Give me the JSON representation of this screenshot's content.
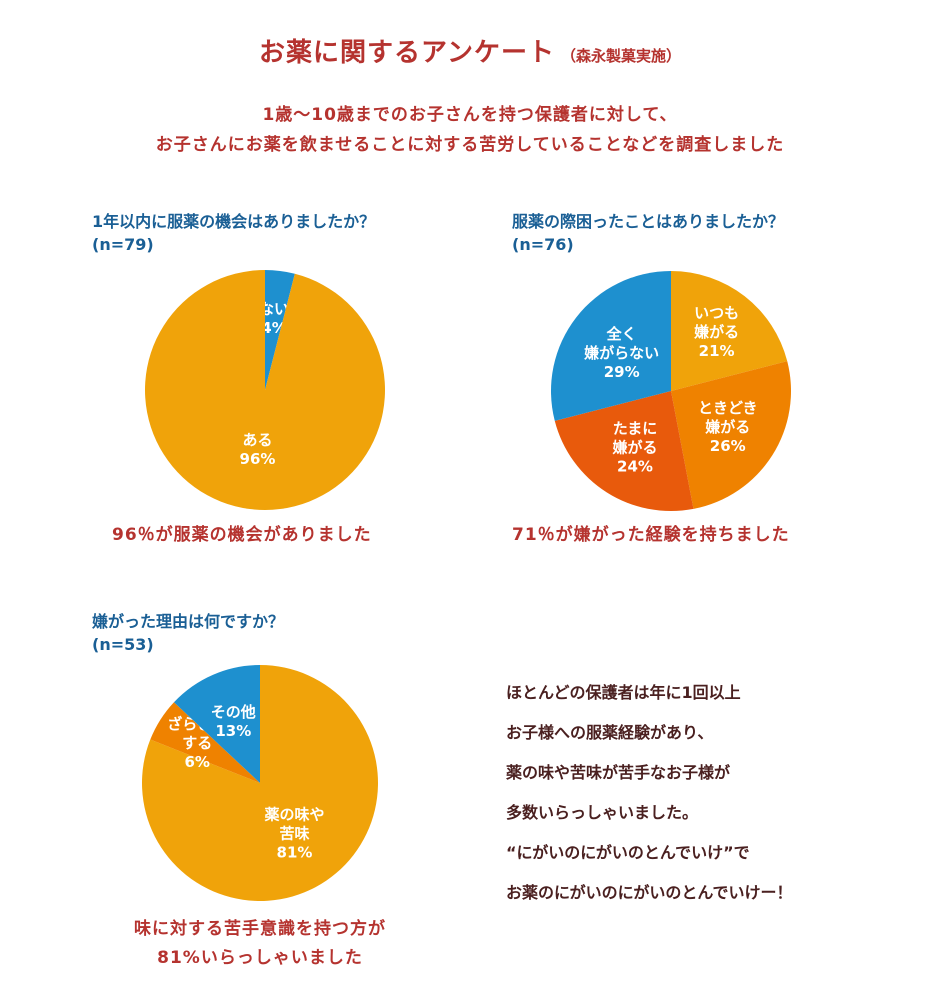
{
  "header": {
    "title": "お薬に関するアンケート",
    "subtitle": "（森永製菓実施）",
    "intro_line1": "1歳〜10歳までのお子さんを持つ保護者に対して、",
    "intro_line2": "お子さんにお薬を飲ませることに対する苦労していることなどを調査しました"
  },
  "colors": {
    "orange": "#f0a30a",
    "dark_orange": "#ef8200",
    "red_orange": "#e85a0c",
    "blue": "#1e90cf",
    "title_red": "#b5332f",
    "question_blue": "#1a5f95"
  },
  "chart_data": [
    {
      "type": "pie",
      "title": "1年以内に服薬の機会はありましたか？",
      "n_label": "(n=79)",
      "slices": [
        {
          "label_lines": [
            "ない",
            "4%"
          ],
          "value": 4,
          "color": "#1e90cf"
        },
        {
          "label_lines": [
            "ある",
            "96%"
          ],
          "value": 96,
          "color": "#f0a30a"
        }
      ],
      "finding": "96％が服薬の機会がありました"
    },
    {
      "type": "pie",
      "title": "服薬の際困ったことはありましたか？",
      "n_label": "(n=76)",
      "slices": [
        {
          "label_lines": [
            "いつも",
            "嫌がる",
            "21%"
          ],
          "value": 21,
          "color": "#f0a30a"
        },
        {
          "label_lines": [
            "ときどき",
            "嫌がる",
            "26%"
          ],
          "value": 26,
          "color": "#ef8200"
        },
        {
          "label_lines": [
            "たまに",
            "嫌がる",
            "24%"
          ],
          "value": 24,
          "color": "#e85a0c"
        },
        {
          "label_lines": [
            "全く",
            "嫌がらない",
            "29%"
          ],
          "value": 29,
          "color": "#1e90cf"
        }
      ],
      "finding": "71％が嫌がった経験を持ちました"
    },
    {
      "type": "pie",
      "title": "嫌がった理由は何ですか？",
      "n_label": "(n=53)",
      "slices": [
        {
          "label_lines": [
            "薬の味や",
            "苦味",
            "81%"
          ],
          "value": 81,
          "color": "#f0a30a"
        },
        {
          "label_lines": [
            "ざらざら",
            "する",
            "6%"
          ],
          "value": 6,
          "color": "#ef8200"
        },
        {
          "label_lines": [
            "その他",
            "13%"
          ],
          "value": 13,
          "color": "#1e90cf"
        }
      ],
      "finding_line1": "味に対する苦手意識を持つ方が",
      "finding_line2": "81%いらっしゃいました"
    }
  ],
  "summary": [
    "ほとんどの保護者は年に1回以上",
    "お子様への服薬経験があり、",
    "薬の味や苦味が苦手なお子様が",
    "多数いらっしゃいました。",
    "“にがいのにがいのとんでいけ”で",
    "お薬のにがいのにがいのとんでいけー！"
  ]
}
